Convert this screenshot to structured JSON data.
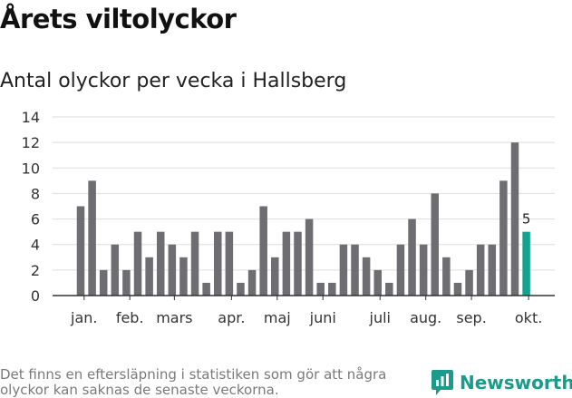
{
  "header": {
    "title": "Årets viltolyckor",
    "subtitle": "Antal olyckor per vecka i Hallsberg"
  },
  "footer": {
    "note": "Det finns en eftersläpning i statistiken som gör att några olyckor kan saknas de senaste veckorna.",
    "brand": "Newsworthy"
  },
  "colors": {
    "bar": "#6d6d72",
    "highlight": "#14a38e",
    "grid": "#dddddd",
    "axis": "#333333",
    "brand": "#1c9b8a"
  },
  "chart_data": {
    "type": "bar",
    "title": "Antal olyckor per vecka i Hallsberg",
    "xlabel": "",
    "ylabel": "",
    "ylim": [
      0,
      14
    ],
    "yticks": [
      0,
      2,
      4,
      6,
      8,
      10,
      12,
      14
    ],
    "grid": true,
    "values": [
      7,
      9,
      2,
      4,
      2,
      5,
      3,
      5,
      4,
      3,
      5,
      1,
      5,
      5,
      1,
      2,
      7,
      3,
      5,
      5,
      6,
      1,
      1,
      4,
      4,
      3,
      2,
      1,
      4,
      6,
      4,
      8,
      3,
      1,
      2,
      4,
      4,
      9,
      12,
      5
    ],
    "highlight_index": 39,
    "highlight_label": "5",
    "month_labels": [
      {
        "label": "jan.",
        "index": 0.3
      },
      {
        "label": "feb.",
        "index": 4.3
      },
      {
        "label": "mars",
        "index": 8.2
      },
      {
        "label": "apr.",
        "index": 13.2
      },
      {
        "label": "maj",
        "index": 17.2
      },
      {
        "label": "juni",
        "index": 21.2
      },
      {
        "label": "juli",
        "index": 26.2
      },
      {
        "label": "aug.",
        "index": 30.2
      },
      {
        "label": "sep.",
        "index": 34.2
      },
      {
        "label": "okt.",
        "index": 39.2
      }
    ]
  }
}
